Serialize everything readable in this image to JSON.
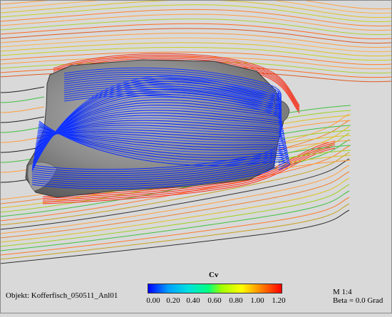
{
  "colorbar": {
    "title": "Cv",
    "ticks": [
      "0.00",
      "0.20",
      "0.40",
      "0.60",
      "0.80",
      "1.00",
      "1.20"
    ],
    "colors": [
      "#0000ff",
      "#00a0ff",
      "#00e0e0",
      "#00ff80",
      "#a0ff00",
      "#ffff00",
      "#ff8000",
      "#ff0000"
    ]
  },
  "footer": {
    "object": "Objekt: Kofferfisch_050511_Anl01",
    "scale": "M 1:4",
    "beta": "Beta = 0.0 Grad"
  },
  "colors": {
    "background": "#d9d9d9",
    "body": "#8c8c8c",
    "surface_streamlines": "#0a2cff"
  }
}
